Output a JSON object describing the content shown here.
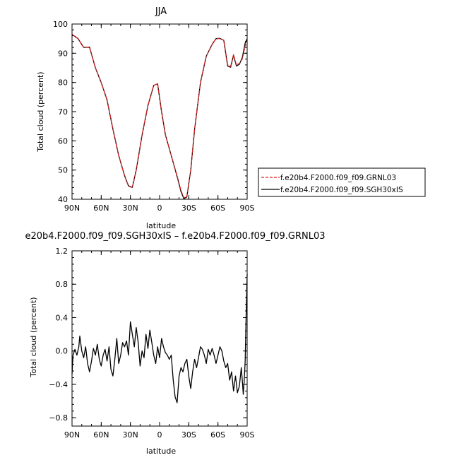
{
  "chart_data": [
    {
      "type": "line",
      "title": "JJA",
      "xlabel": "latitude",
      "ylabel": "Total cloud (percent)",
      "xlim": [
        90,
        -90
      ],
      "ylim": [
        40,
        100
      ],
      "x_ticks": [
        90,
        60,
        30,
        0,
        -30,
        -60,
        -90
      ],
      "x_tick_labels": [
        "90N",
        "60N",
        "30N",
        "0",
        "30S",
        "60S",
        "90S"
      ],
      "y_ticks": [
        40,
        50,
        60,
        70,
        80,
        90,
        100
      ],
      "y_tick_labels": [
        "40",
        "50",
        "60",
        "70",
        "80",
        "90",
        "100"
      ],
      "legend_position": "right",
      "series": [
        {
          "name": "f.e20b4.F2000.f09_f09.GRNL03",
          "color": "#e02020",
          "dash": "dashed",
          "x": [
            90,
            84,
            78,
            72,
            66,
            60,
            54,
            48,
            42,
            36,
            32,
            28,
            24,
            18,
            12,
            6,
            2,
            -2,
            -6,
            -12,
            -18,
            -22,
            -25,
            -28,
            -32,
            -36,
            -42,
            -48,
            -54,
            -58,
            -62,
            -66,
            -70,
            -73,
            -76,
            -79,
            -82,
            -85,
            -88,
            -90
          ],
          "y": [
            96.5,
            95,
            92,
            92,
            85,
            80,
            74,
            64,
            55,
            48,
            44.5,
            44,
            50,
            62,
            72,
            79,
            79.5,
            70,
            62,
            55,
            48,
            43,
            40.5,
            41,
            50,
            64,
            80,
            89,
            93,
            95,
            95,
            94.5,
            86,
            85.5,
            89.5,
            86,
            86.5,
            88,
            92.5,
            94
          ]
        },
        {
          "name": "f.e20b4.F2000.f09_f09.SGH30xIS",
          "color": "#000000",
          "dash": "solid",
          "x": [
            90,
            84,
            78,
            72,
            66,
            60,
            54,
            48,
            42,
            36,
            32,
            28,
            24,
            18,
            12,
            6,
            2,
            -2,
            -6,
            -12,
            -18,
            -22,
            -25,
            -28,
            -32,
            -36,
            -42,
            -48,
            -54,
            -58,
            -62,
            -66,
            -70,
            -73,
            -76,
            -79,
            -82,
            -85,
            -88,
            -90
          ],
          "y": [
            96.4,
            95.1,
            92,
            92.1,
            85,
            80,
            74,
            64,
            55,
            48.1,
            44.6,
            44.1,
            50,
            62,
            72.1,
            79,
            79.5,
            70,
            62,
            55,
            47.8,
            42.6,
            40.2,
            40.8,
            49.9,
            64,
            80,
            89,
            93,
            95,
            95.1,
            94.4,
            85.6,
            85.2,
            89.3,
            85.6,
            86.2,
            88.5,
            93.5,
            95
          ]
        }
      ]
    },
    {
      "type": "line",
      "title": "e20b4.F2000.f09_f09.SGH30xIS – f.e20b4.F2000.f09_f09.GRNL03",
      "xlabel": "latitude",
      "ylabel": "Total cloud (percent)",
      "xlim": [
        90,
        -90
      ],
      "ylim": [
        -0.9,
        1.2
      ],
      "x_ticks": [
        90,
        60,
        30,
        0,
        -30,
        -60,
        -90
      ],
      "x_tick_labels": [
        "90N",
        "60N",
        "30N",
        "0",
        "30S",
        "60S",
        "90S"
      ],
      "y_ticks": [
        -0.8,
        -0.4,
        0.0,
        0.4,
        0.8,
        1.2
      ],
      "y_tick_labels": [
        "−0.8",
        "−0.4",
        "0.0",
        "0.4",
        "0.8",
        "1.2"
      ],
      "series": [
        {
          "color": "#000000",
          "x": [
            90,
            89,
            87,
            85,
            83,
            82,
            80,
            78,
            76,
            74,
            72,
            70,
            68,
            66,
            64,
            62,
            60,
            58,
            56,
            54,
            52,
            50,
            48,
            46,
            44,
            42,
            40,
            38,
            36,
            34,
            32,
            30,
            28,
            26,
            24,
            22,
            20,
            18,
            16,
            14,
            12,
            10,
            8,
            6,
            4,
            2,
            0,
            -2,
            -4,
            -6,
            -8,
            -10,
            -12,
            -14,
            -16,
            -18,
            -20,
            -22,
            -24,
            -26,
            -28,
            -30,
            -32,
            -34,
            -36,
            -38,
            -40,
            -42,
            -44,
            -46,
            -48,
            -50,
            -52,
            -54,
            -56,
            -58,
            -60,
            -62,
            -64,
            -66,
            -68,
            -70,
            -72,
            -74,
            -76,
            -78,
            -80,
            -82,
            -84,
            -85,
            -86,
            -87,
            -88,
            -89,
            -90
          ],
          "y": [
            -0.28,
            -0.05,
            0.02,
            -0.05,
            0.05,
            0.18,
            0.0,
            -0.08,
            0.05,
            -0.15,
            -0.25,
            -0.12,
            0.03,
            -0.05,
            0.08,
            -0.1,
            -0.18,
            -0.05,
            0.02,
            -0.12,
            0.05,
            -0.22,
            -0.3,
            -0.1,
            0.15,
            -0.15,
            -0.05,
            0.1,
            0.05,
            0.12,
            -0.05,
            0.35,
            0.2,
            0.05,
            0.28,
            0.1,
            -0.18,
            0.0,
            -0.08,
            0.2,
            0.03,
            0.25,
            0.1,
            -0.05,
            -0.15,
            0.05,
            -0.08,
            0.15,
            0.05,
            -0.02,
            -0.05,
            -0.1,
            -0.05,
            -0.35,
            -0.55,
            -0.62,
            -0.3,
            -0.2,
            -0.25,
            -0.15,
            -0.1,
            -0.3,
            -0.45,
            -0.25,
            -0.1,
            -0.2,
            -0.08,
            0.05,
            0.02,
            -0.05,
            -0.15,
            0.02,
            -0.05,
            0.03,
            -0.05,
            -0.15,
            -0.05,
            0.05,
            0.0,
            -0.12,
            -0.2,
            -0.15,
            -0.35,
            -0.25,
            -0.48,
            -0.3,
            -0.5,
            -0.42,
            -0.2,
            -0.35,
            -0.52,
            -0.35,
            -0.12,
            0.45,
            0.92
          ]
        }
      ]
    }
  ]
}
